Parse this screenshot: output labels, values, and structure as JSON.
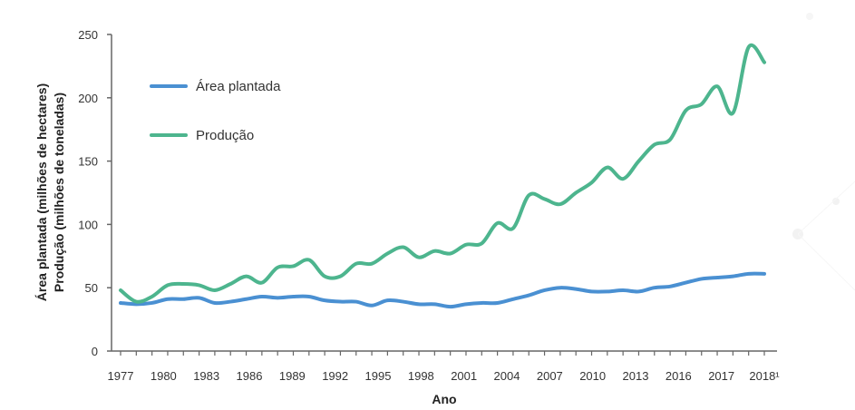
{
  "chart_data": {
    "type": "line",
    "title": "",
    "xlabel": "Ano",
    "ylabel_lines": [
      "Área plantada (milhões de hectares)",
      "Produção (milhões de toneladas)"
    ],
    "ylim": [
      0,
      250
    ],
    "yticks": [
      0,
      50,
      100,
      150,
      200,
      250
    ],
    "x_tick_labels": [
      "1977",
      "1980",
      "1983",
      "1986",
      "1989",
      "1992",
      "1995",
      "1998",
      "2001",
      "2004",
      "2007",
      "2010",
      "2013",
      "2016",
      "2017",
      "2018¹"
    ],
    "x_tick_positions_index": [
      0,
      3,
      6,
      9,
      12,
      15,
      18,
      21,
      24,
      27,
      30,
      33,
      36,
      39,
      40,
      41
    ],
    "x_count": 42,
    "grid": false,
    "legend_position": "top-left",
    "series": [
      {
        "name": "Área plantada",
        "color": "#4a90d2",
        "values": [
          38,
          37,
          38,
          41,
          41,
          42,
          38,
          39,
          41,
          43,
          42,
          43,
          43,
          40,
          39,
          39,
          36,
          40,
          39,
          37,
          37,
          35,
          37,
          38,
          38,
          41,
          44,
          48,
          50,
          49,
          47,
          47,
          48,
          47,
          50,
          51,
          54,
          57,
          58,
          59,
          61,
          61
        ]
      },
      {
        "name": "Produção",
        "color": "#4db58e",
        "values": [
          48,
          39,
          43,
          52,
          53,
          52,
          48,
          53,
          59,
          54,
          66,
          67,
          72,
          59,
          59,
          69,
          69,
          77,
          82,
          74,
          79,
          77,
          84,
          85,
          101,
          97,
          123,
          120,
          116,
          125,
          133,
          145,
          136,
          150,
          163,
          167,
          190,
          195,
          209,
          188,
          240,
          228
        ]
      }
    ]
  }
}
